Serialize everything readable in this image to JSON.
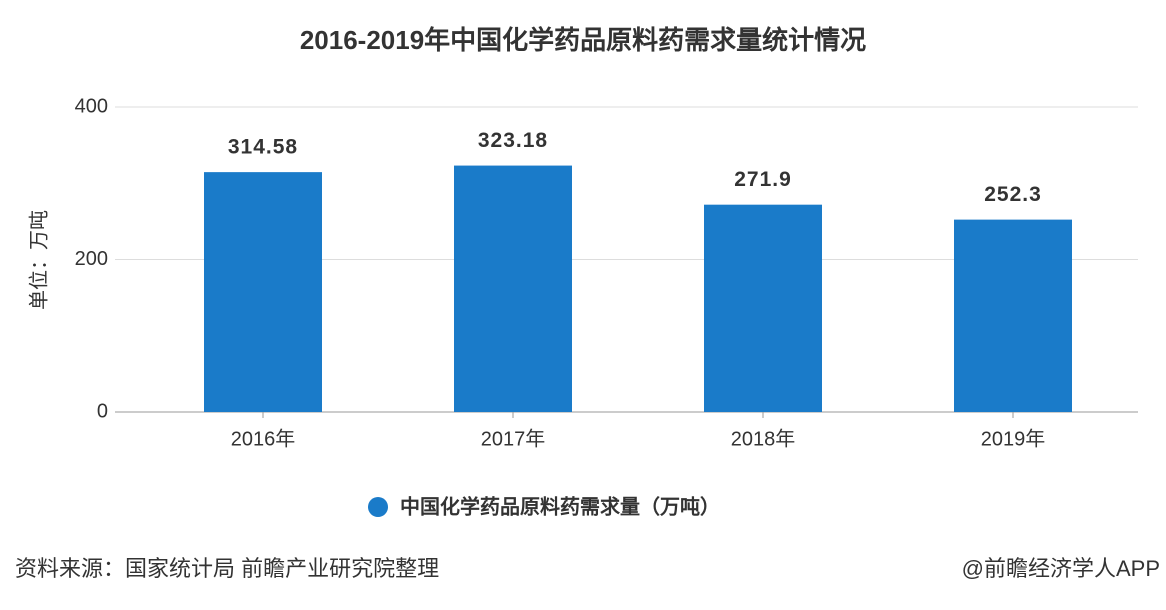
{
  "chart_data": {
    "type": "bar",
    "title": "2016-2019年中国化学药品原料药需求量统计情况",
    "y_label": "单位：万吨",
    "categories": [
      "2016年",
      "2017年",
      "2018年",
      "2019年"
    ],
    "series": [
      {
        "name": "中国化学药品原料药需求量（万吨）",
        "color": "#1a7bc9",
        "values": [
          314.58,
          323.18,
          271.9,
          252.3
        ]
      }
    ],
    "ylim": [
      0,
      400
    ],
    "yticks": [
      0,
      200,
      400
    ],
    "grid": true,
    "source": "资料来源：国家统计局 前瞻产业研究院整理",
    "credit": "@前瞻经济学人APP"
  }
}
